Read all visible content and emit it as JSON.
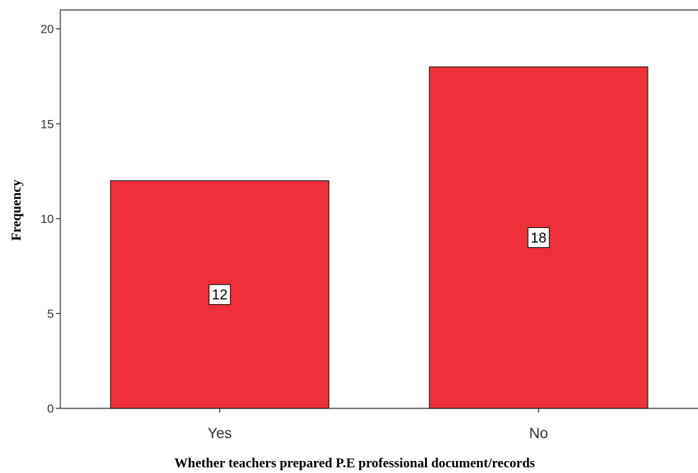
{
  "chart_data": {
    "type": "bar",
    "categories": [
      "Yes",
      "No"
    ],
    "values": [
      12,
      18
    ],
    "data_labels": [
      "12",
      "18"
    ],
    "title": "",
    "xlabel": "Whether teachers prepared P.E professional document/records",
    "ylabel": "Frequency",
    "ylim": [
      0,
      21
    ],
    "yticks": [
      0,
      5,
      10,
      15,
      20
    ],
    "ytick_labels": [
      "0",
      "5",
      "10",
      "15",
      "20"
    ],
    "grid": false,
    "legend": "none",
    "colors": {
      "bar_fill": "#ee3039",
      "bar_stroke": "#222222",
      "axis": "#222222",
      "label_box": "#ffffff"
    }
  }
}
